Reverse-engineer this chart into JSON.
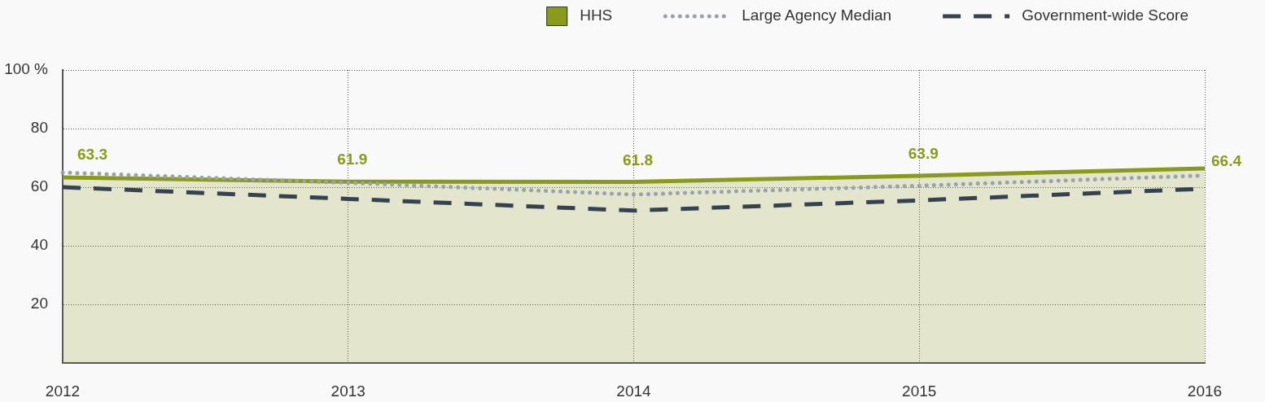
{
  "chart_data": {
    "type": "line",
    "categories": [
      "2012",
      "2013",
      "2014",
      "2015",
      "2016"
    ],
    "series": [
      {
        "name": "HHS",
        "type": "area",
        "color": "#8a9a19",
        "values": [
          63.3,
          61.9,
          61.8,
          63.9,
          66.4
        ],
        "value_labels": [
          "63.3",
          "61.9",
          "61.8",
          "63.9",
          "66.4"
        ]
      },
      {
        "name": "Large Agency Median",
        "color": "#9ba1ae",
        "values": [
          65,
          61.5,
          57.5,
          60.5,
          64
        ],
        "line_style": "dotted"
      },
      {
        "name": "Government-wide Score",
        "color": "#36424f",
        "values": [
          60,
          56,
          52,
          55.5,
          59.5
        ],
        "line_style": "dashed"
      }
    ],
    "ylim": [
      0,
      100
    ],
    "yticks": [
      20,
      40,
      60,
      80,
      {
        "value": 100,
        "label": "100 %"
      }
    ],
    "grid": true,
    "legend": "top right"
  }
}
